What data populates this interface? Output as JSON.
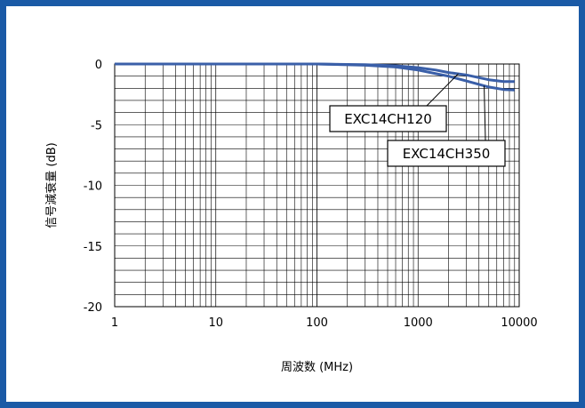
{
  "chart_data": {
    "type": "line",
    "title": "",
    "xlabel": "周波数 (MHz)",
    "ylabel": "信号減衰量 (dB)",
    "x_scale": "log",
    "xlim": [
      1,
      10000
    ],
    "ylim": [
      -20,
      0
    ],
    "x_ticks": [
      "1",
      "10",
      "100",
      "1000",
      "10000"
    ],
    "y_ticks": [
      "0",
      "-5",
      "-10",
      "-15",
      "-20"
    ],
    "y_tick_values": [
      0,
      -5,
      -10,
      -15,
      -20
    ],
    "y_minor_step": 1,
    "grid": true,
    "line_color": "#3a5fa8",
    "frame_color": "#1a5aa6",
    "series": [
      {
        "name": "EXC14CH120",
        "x": [
          1,
          10,
          100,
          300,
          600,
          1000,
          1500,
          2000,
          3000,
          5000,
          7000,
          9000
        ],
        "y": [
          0,
          0,
          0,
          -0.05,
          -0.15,
          -0.3,
          -0.5,
          -0.7,
          -0.9,
          -1.3,
          -1.45,
          -1.45
        ]
      },
      {
        "name": "EXC14CH350",
        "x": [
          1,
          10,
          100,
          300,
          600,
          1000,
          1500,
          2000,
          3000,
          5000,
          7000,
          9000
        ],
        "y": [
          0,
          0,
          0,
          -0.1,
          -0.25,
          -0.5,
          -0.8,
          -1.0,
          -1.4,
          -1.9,
          -2.1,
          -2.15
        ]
      }
    ],
    "annotations": [
      {
        "text": "EXC14CH120",
        "points_to_series": "EXC14CH120",
        "x": 2500,
        "y": -0.8
      },
      {
        "text": "EXC14CH350",
        "points_to_series": "EXC14CH350",
        "x": 4500,
        "y": -1.8
      }
    ]
  }
}
